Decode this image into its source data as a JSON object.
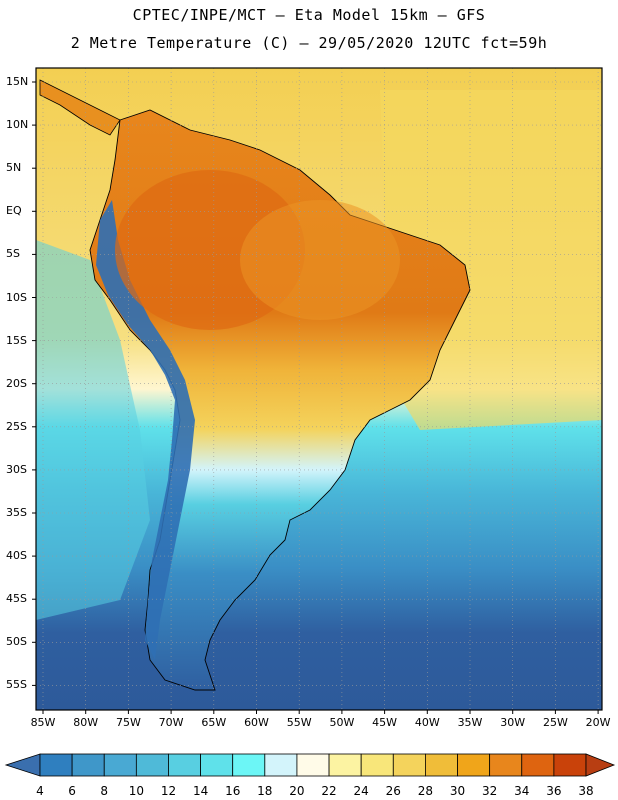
{
  "title_line1": "CPTEC/INPE/MCT –  Eta Model 15km – GFS",
  "title_line2": "2 Metre Temperature (C) – 29/05/2020 12UTC fct=59h",
  "lat_labels": [
    "15N",
    "10N",
    "5N",
    "EQ",
    "5S",
    "10S",
    "15S",
    "20S",
    "25S",
    "30S",
    "35S",
    "40S",
    "45S",
    "50S",
    "55S"
  ],
  "lon_labels": [
    "85W",
    "80W",
    "75W",
    "70W",
    "65W",
    "60W",
    "55W",
    "50W",
    "45W",
    "40W",
    "35W",
    "30W",
    "25W",
    "20W"
  ],
  "colorbar": {
    "labels": [
      "4",
      "6",
      "8",
      "10",
      "12",
      "14",
      "16",
      "18",
      "20",
      "22",
      "24",
      "26",
      "28",
      "30",
      "32",
      "34",
      "36",
      "38"
    ],
    "colors": [
      "#3a6fae",
      "#2f7fbf",
      "#3f97c9",
      "#49a9d3",
      "#4fbad8",
      "#58cfe1",
      "#5fe1ea",
      "#6cf6f6",
      "#d3f4fb",
      "#fffbe8",
      "#fcf3a2",
      "#f8e67a",
      "#f4d35c",
      "#f0bd39",
      "#f0a51a",
      "#e8861c",
      "#de6410",
      "#c9420a",
      "#b83e12"
    ]
  },
  "colors": {
    "ocean_cold": "#2e5fa0",
    "ocean_mid": "#3a9ccc",
    "ocean_cyan": "#5fe1ea",
    "ocean_warm": "#f6d75a",
    "land_hot": "#e67c16",
    "land_warm": "#f0b43a",
    "andes": "#2f6fb4",
    "south_land": "#2f68a8"
  }
}
